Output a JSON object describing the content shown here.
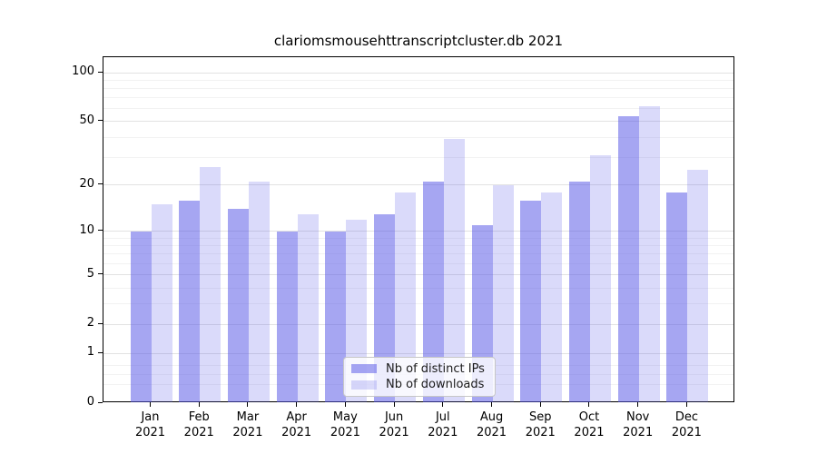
{
  "title": "clariomsmousehttranscriptcluster.db 2021",
  "legend": {
    "items": [
      {
        "label": "Nb of distinct IPs"
      },
      {
        "label": "Nb of downloads"
      }
    ]
  },
  "colors": {
    "bar_base": "#5555e6",
    "bar_ip": "rgba(85,85,230,0.52)",
    "bar_downloads": "rgba(85,85,230,0.22)",
    "grid_major": "#e2e2e2",
    "grid_minor": "#f2f2f2",
    "axis": "#000000"
  },
  "chart_data": {
    "type": "bar",
    "title": "clariomsmousehttranscriptcluster.db 2021",
    "categories": [
      "Jan 2021",
      "Feb 2021",
      "Mar 2021",
      "Apr 2021",
      "May 2021",
      "Jun 2021",
      "Jul 2021",
      "Aug 2021",
      "Sep 2021",
      "Oct 2021",
      "Nov 2021",
      "Dec 2021"
    ],
    "series": [
      {
        "name": "Nb of distinct IPs",
        "color": "rgba(85,85,230,0.52)",
        "values": [
          10,
          16,
          14,
          10,
          10,
          13,
          21,
          11,
          16,
          21,
          54,
          18
        ]
      },
      {
        "name": "Nb of downloads",
        "color": "rgba(85,85,230,0.22)",
        "values": [
          15,
          26,
          21,
          13,
          12,
          18,
          39,
          20,
          18,
          31,
          62,
          25
        ]
      }
    ],
    "xlabel": "",
    "ylabel": "",
    "yscale": "log1p",
    "ylim": [
      0,
      124
    ],
    "yticks": [
      0,
      1,
      2,
      5,
      10,
      20,
      50,
      100
    ],
    "y_minor_gridlines": [
      0.3,
      0.5,
      0.7,
      3,
      4,
      6,
      7,
      8,
      9,
      30,
      40,
      60,
      70,
      80,
      90
    ],
    "grid": true,
    "legend_position": "lower center"
  }
}
